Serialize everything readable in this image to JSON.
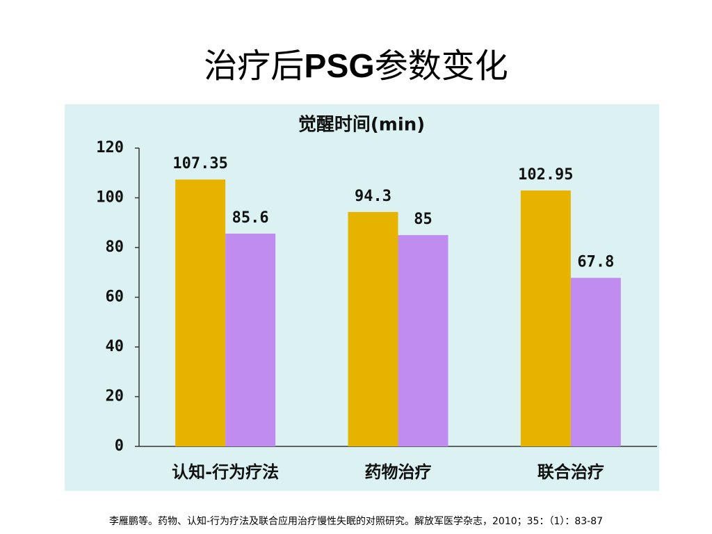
{
  "title": [
    "治疗后",
    "PSG",
    "参数变化"
  ],
  "footnote": "李雁鹏等。药物、认知-行为疗法及联合应用治疗慢性失眠的对照研究。解放军医学杂志，2010；35：（1）：83-87",
  "chart_data": {
    "type": "bar",
    "title": "觉醒时间(min)",
    "categories": [
      "认知-行为疗法",
      "药物治疗",
      "联合治疗"
    ],
    "series": [
      {
        "color": "#e6b400",
        "values": [
          107.35,
          94.3,
          102.95
        ]
      },
      {
        "color": "#c08cf0",
        "values": [
          85.6,
          85,
          67.8
        ]
      }
    ],
    "ylim": [
      0,
      120
    ],
    "yticks": [
      0,
      20,
      40,
      60,
      80,
      100,
      120
    ]
  }
}
